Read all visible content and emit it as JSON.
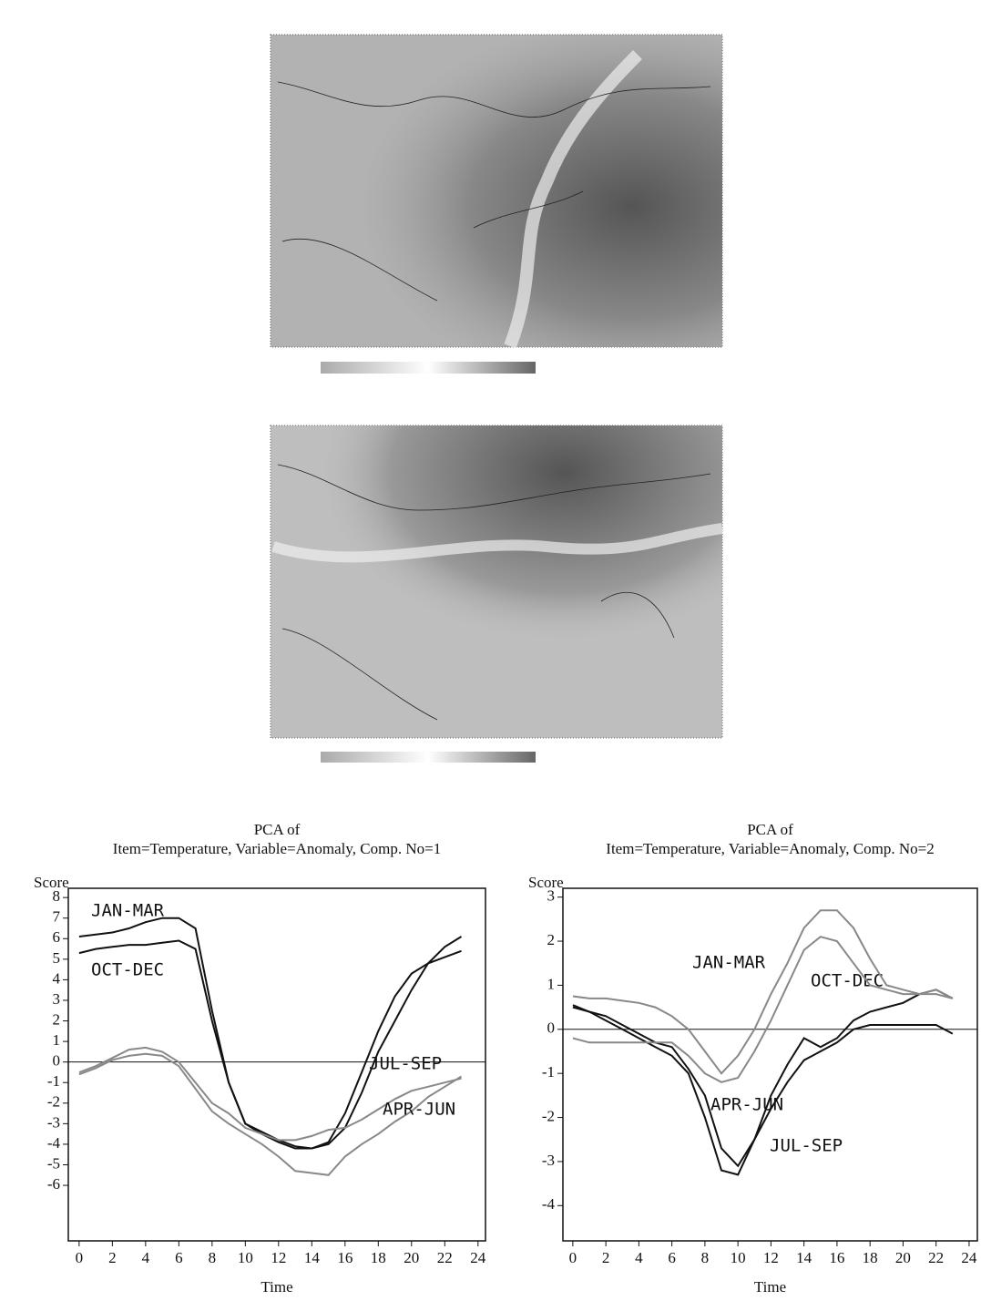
{
  "chart_data": [
    {
      "type": "line",
      "title": "PCA of",
      "subtitle": "Item=Temperature, Variable=Anomaly, Comp. No=1",
      "y_label": "Score",
      "x_label": "Time",
      "x": [
        0,
        1,
        2,
        3,
        4,
        5,
        6,
        7,
        8,
        9,
        10,
        11,
        12,
        13,
        14,
        15,
        16,
        17,
        18,
        19,
        20,
        21,
        22,
        23
      ],
      "xlim": [
        -0.65,
        24.45
      ],
      "xticks": [
        0,
        2,
        4,
        6,
        8,
        10,
        12,
        14,
        16,
        18,
        20,
        22,
        24
      ],
      "ylim": [
        -8.7,
        8.45
      ],
      "yticks": [
        -6,
        -5,
        -4,
        -3,
        -2,
        -1,
        0,
        1,
        2,
        3,
        4,
        5,
        6,
        7,
        8
      ],
      "reference_line": 0,
      "series": [
        {
          "name": "JAN-MAR",
          "color": "#111111",
          "values": [
            6.1,
            6.2,
            6.3,
            6.5,
            6.8,
            7.0,
            7.0,
            6.5,
            2.5,
            -1.0,
            -3.0,
            -3.5,
            -3.9,
            -4.2,
            -4.2,
            -4.0,
            -3.2,
            -1.5,
            0.5,
            2.0,
            3.5,
            4.8,
            5.6,
            6.1
          ]
        },
        {
          "name": "OCT-DEC",
          "color": "#111111",
          "values": [
            5.3,
            5.5,
            5.6,
            5.7,
            5.7,
            5.8,
            5.9,
            5.5,
            2.0,
            -1.0,
            -3.0,
            -3.4,
            -3.8,
            -4.1,
            -4.2,
            -3.9,
            -2.5,
            -0.5,
            1.5,
            3.2,
            4.3,
            4.8,
            5.1,
            5.4
          ]
        },
        {
          "name": "JUL-SEP",
          "color": "#888888",
          "values": [
            -0.5,
            -0.2,
            0.2,
            0.6,
            0.7,
            0.5,
            0,
            -1.0,
            -2.0,
            -2.5,
            -3.2,
            -3.5,
            -3.8,
            -3.8,
            -3.6,
            -3.3,
            -3.2,
            -2.8,
            -2.3,
            -1.8,
            -1.4,
            -1.2,
            -1.0,
            -0.8
          ]
        },
        {
          "name": "APR-JUN",
          "color": "#888888",
          "values": [
            -0.6,
            -0.3,
            0.1,
            0.3,
            0.4,
            0.3,
            -0.2,
            -1.3,
            -2.4,
            -3.0,
            -3.5,
            -4.0,
            -4.6,
            -5.3,
            -5.4,
            -5.5,
            -4.6,
            -4.0,
            -3.5,
            -2.9,
            -2.4,
            -1.7,
            -1.2,
            -0.7
          ]
        }
      ]
    },
    {
      "type": "line",
      "title": "PCA of",
      "subtitle": "Item=Temperature, Variable=Anomaly, Comp. No=2",
      "y_label": "Score",
      "x_label": "Time",
      "x": [
        0,
        1,
        2,
        3,
        4,
        5,
        6,
        7,
        8,
        9,
        10,
        11,
        12,
        13,
        14,
        15,
        16,
        17,
        18,
        19,
        20,
        21,
        22,
        23
      ],
      "xlim": [
        -0.6,
        24.5
      ],
      "xticks": [
        0,
        2,
        4,
        6,
        8,
        10,
        12,
        14,
        16,
        18,
        20,
        22,
        24
      ],
      "ylim": [
        -4.8,
        3.2
      ],
      "yticks": [
        -4,
        -3,
        -2,
        -1,
        0,
        1,
        2,
        3
      ],
      "reference_line": 0,
      "series": [
        {
          "name": "JAN-MAR",
          "color": "#111111",
          "values": [
            0.5,
            0.4,
            0.2,
            0,
            -0.2,
            -0.4,
            -0.6,
            -1.0,
            -2.0,
            -3.2,
            -3.3,
            -2.5,
            -1.5,
            -0.8,
            -0.2,
            -0.4,
            -0.2,
            0.2,
            0.4,
            0.5,
            0.6,
            0.8,
            0.9,
            0.7
          ]
        },
        {
          "name": "OCT-DEC",
          "color": "#111111",
          "values": [
            0.55,
            0.4,
            0.3,
            0.1,
            -0.1,
            -0.3,
            -0.4,
            -0.9,
            -1.5,
            -2.7,
            -3.1,
            -2.5,
            -1.8,
            -1.2,
            -0.7,
            -0.5,
            -0.3,
            0,
            0.1,
            0.1,
            0.1,
            0.1,
            0.1,
            -0.1
          ]
        },
        {
          "name": "APR-JUN",
          "color": "#888888",
          "values": [
            0.75,
            0.7,
            0.7,
            0.65,
            0.6,
            0.5,
            0.3,
            0,
            -0.5,
            -1.0,
            -0.6,
            0,
            0.8,
            1.5,
            2.3,
            2.7,
            2.7,
            2.3,
            1.6,
            1.0,
            0.9,
            0.8,
            0.9,
            0.7
          ]
        },
        {
          "name": "JUL-SEP",
          "color": "#888888",
          "values": [
            -0.2,
            -0.3,
            -0.3,
            -0.3,
            -0.3,
            -0.3,
            -0.3,
            -0.6,
            -1.0,
            -1.2,
            -1.1,
            -0.5,
            0.2,
            1.0,
            1.8,
            2.1,
            2.0,
            1.5,
            1.0,
            0.9,
            0.8,
            0.8,
            0.8,
            0.7
          ]
        }
      ]
    }
  ]
}
